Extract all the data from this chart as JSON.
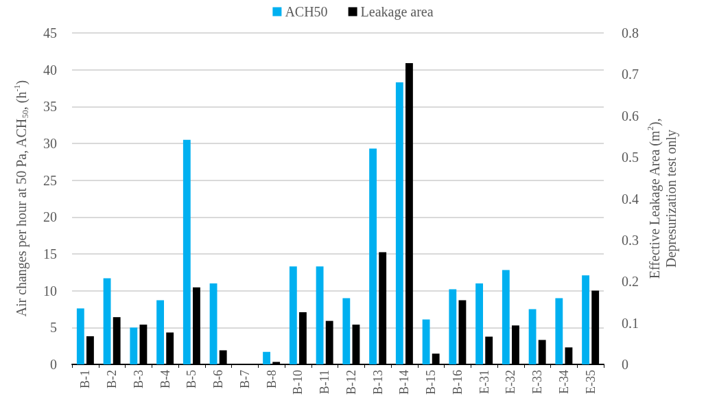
{
  "chart_data": {
    "type": "bar",
    "ylabel": "Air changes per hour at 50 Pa, ACH$_{50}$, (h$^{-1}$)",
    "y2label": "Effective Leakage Area (m$^{2}$),\nDepresurization test only",
    "categories": [
      "B-1",
      "B-2",
      "B-3",
      "B-4",
      "B-5",
      "B-6",
      "B-7",
      "B-8",
      "B-10",
      "B-11",
      "B-12",
      "B-13",
      "B-14",
      "B-15",
      "B-16",
      "E-31",
      "E-32",
      "E-33",
      "E-34",
      "E-35"
    ],
    "series": [
      {
        "name": "ACH50",
        "color": "#00b0f0",
        "values": [
          7.6,
          11.7,
          5.0,
          8.7,
          30.5,
          11.0,
          null,
          1.7,
          13.3,
          13.3,
          9.0,
          29.3,
          38.3,
          6.1,
          10.2,
          11.0,
          12.8,
          7.5,
          9.0,
          12.1
        ]
      },
      {
        "name": "Leakage area",
        "color": "#000000",
        "axis": "y2",
        "values": [
          0.068,
          0.114,
          0.096,
          0.077,
          0.186,
          0.034,
          null,
          0.006,
          0.126,
          0.105,
          0.096,
          0.271,
          0.727,
          0.026,
          0.155,
          0.067,
          0.094,
          0.059,
          0.041,
          0.178
        ]
      }
    ],
    "ylim": [
      0,
      45
    ],
    "yticks": [
      0,
      5,
      10,
      15,
      20,
      25,
      30,
      35,
      40,
      45
    ],
    "y2lim": [
      0,
      0.8
    ],
    "y2ticks": [
      0,
      0.1,
      0.2,
      0.3,
      0.4,
      0.5,
      0.6,
      0.7,
      0.8
    ],
    "grid": "y",
    "legend": "top"
  }
}
